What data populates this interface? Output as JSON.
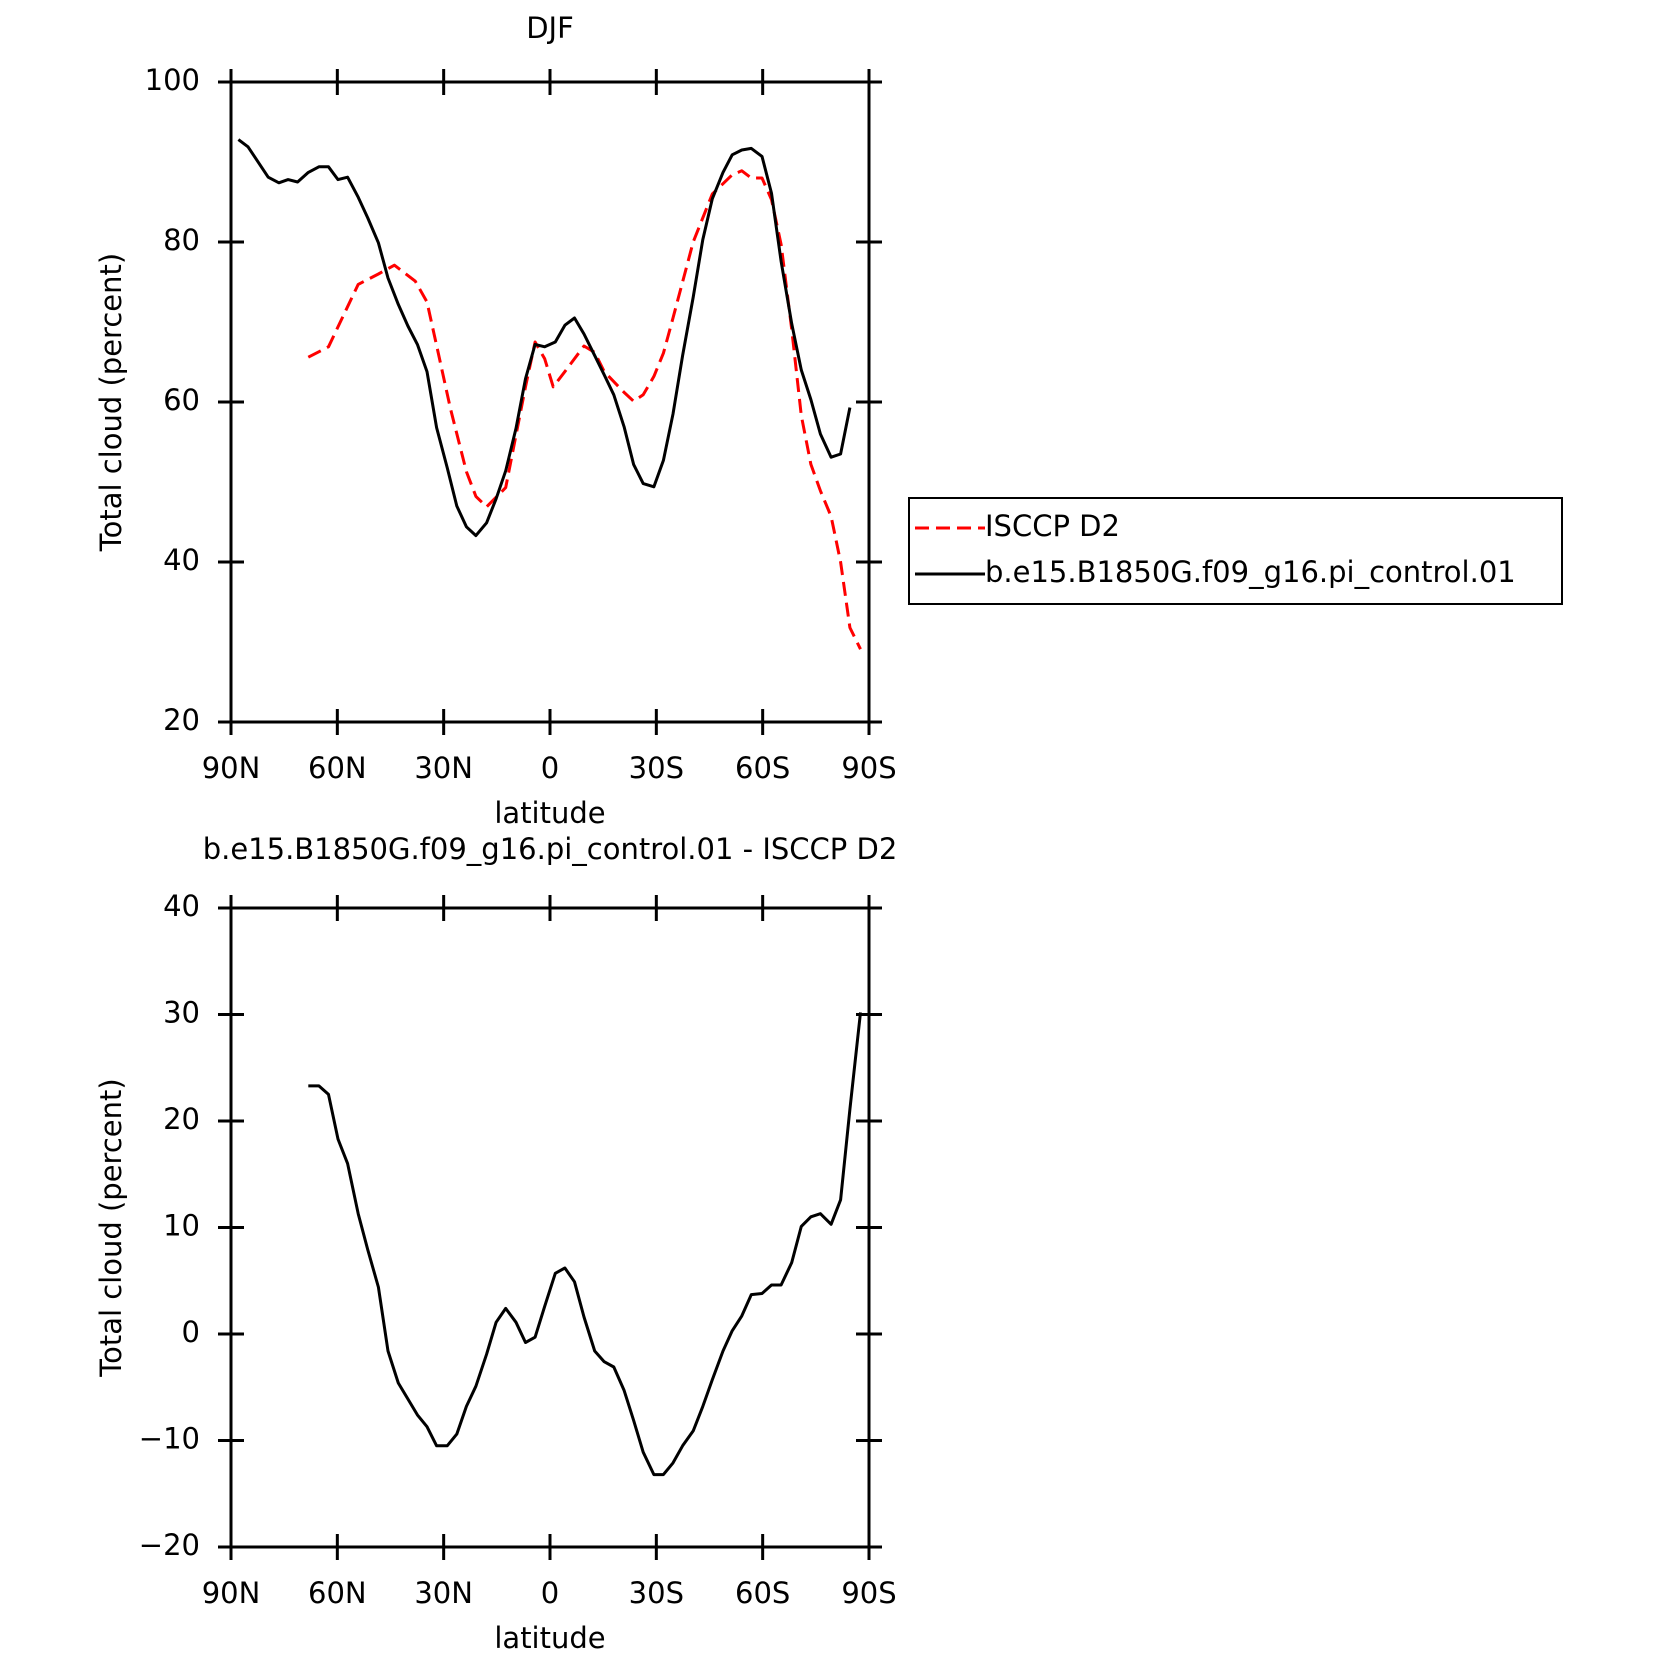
{
  "chart_data": [
    {
      "type": "line",
      "title": "DJF",
      "x_label": "latitude",
      "y_label": "Total cloud (percent)",
      "xlim": [
        90,
        -90
      ],
      "xticks": [
        {
          "value": 90,
          "label": "90N"
        },
        {
          "value": 60,
          "label": "60N"
        },
        {
          "value": 30,
          "label": "30N"
        },
        0,
        {
          "value": -30,
          "label": "30S"
        },
        {
          "value": -60,
          "label": "60S"
        },
        {
          "value": -90,
          "label": "90S"
        }
      ],
      "ylim": [
        20,
        100
      ],
      "yticks": [
        20,
        40,
        60,
        80,
        100
      ],
      "legend": "right",
      "series": [
        {
          "name": "ISCCP D2",
          "color": "#ff0000",
          "dash": true,
          "x": [
            68.2,
            62.5,
            54.1,
            48.4,
            43.9,
            38.0,
            34.7,
            31.7,
            28.1,
            23.6,
            20.9,
            17.9,
            12.5,
            6.9,
            4.2,
            1.5,
            -0.9,
            -4.2,
            -9.6,
            -12.6,
            -15.3,
            -20.9,
            -23.6,
            -26.3,
            -29.3,
            -32.0,
            -34.7,
            -40.4,
            -45.8,
            -51.4,
            -54.1,
            -56.8,
            -59.8,
            -62.5,
            -65.2,
            -68.2,
            -70.9,
            -73.6,
            -76.3,
            -79.3,
            -82.0,
            -84.6,
            -87.6
          ],
          "values": [
            65.6,
            66.9,
            74.7,
            76.0,
            77.1,
            75.1,
            72.5,
            66.5,
            59.2,
            51.3,
            48.2,
            46.9,
            49.3,
            61.9,
            67.5,
            65.4,
            61.9,
            63.8,
            67.0,
            66.2,
            63.8,
            61.2,
            60.1,
            60.9,
            63.2,
            66.1,
            70.5,
            80.0,
            86.0,
            88.4,
            88.9,
            88.0,
            88.0,
            85.3,
            79.7,
            69.1,
            58.3,
            52.2,
            48.9,
            45.7,
            40.0,
            31.8,
            29.1
          ]
        },
        {
          "name": "b.e15.B1850G.f09_g16.pi_control.01",
          "color": "#000000",
          "dash": false,
          "x": [
            87.9,
            85.2,
            79.5,
            76.5,
            73.9,
            71.2,
            68.2,
            65.2,
            62.5,
            59.8,
            57.1,
            54.1,
            51.4,
            48.4,
            45.7,
            42.8,
            40.1,
            37.4,
            34.7,
            32.0,
            29.0,
            26.3,
            23.6,
            20.9,
            17.9,
            15.2,
            12.5,
            9.6,
            6.9,
            4.2,
            1.5,
            -1.5,
            -4.2,
            -6.9,
            -9.6,
            -12.6,
            -15.3,
            -18.0,
            -20.9,
            -23.6,
            -26.3,
            -29.3,
            -32.0,
            -34.7,
            -37.4,
            -40.4,
            -43.1,
            -45.8,
            -48.8,
            -51.4,
            -54.1,
            -56.8,
            -59.8,
            -62.5,
            -65.2,
            -68.2,
            -70.9,
            -73.6,
            -76.3,
            -79.3,
            -82.0,
            -84.6
          ],
          "values": [
            92.8,
            91.9,
            88.1,
            87.4,
            87.8,
            87.5,
            88.7,
            89.4,
            89.4,
            87.8,
            88.1,
            85.6,
            83.0,
            79.9,
            75.5,
            72.2,
            69.5,
            67.2,
            63.8,
            56.8,
            51.8,
            47.0,
            44.4,
            43.3,
            44.9,
            47.9,
            51.4,
            56.7,
            62.9,
            67.2,
            66.9,
            67.5,
            69.6,
            70.5,
            68.5,
            65.8,
            63.4,
            60.9,
            56.9,
            52.2,
            49.8,
            49.4,
            52.7,
            58.5,
            65.8,
            73.1,
            80.3,
            85.4,
            88.7,
            90.9,
            91.5,
            91.7,
            90.7,
            86.1,
            77.6,
            69.8,
            64.0,
            60.3,
            56.0,
            53.1,
            53.5,
            59.3
          ]
        }
      ]
    },
    {
      "type": "line",
      "title": "b.e15.B1850G.f09_g16.pi_control.01 - ISCCP D2",
      "x_label": "latitude",
      "y_label": "Total cloud (percent)",
      "xlim": [
        90,
        -90
      ],
      "xticks": [
        {
          "value": 90,
          "label": "90N"
        },
        {
          "value": 60,
          "label": "60N"
        },
        {
          "value": 30,
          "label": "30N"
        },
        0,
        {
          "value": -30,
          "label": "30S"
        },
        {
          "value": -60,
          "label": "60S"
        },
        {
          "value": -90,
          "label": "90S"
        }
      ],
      "ylim": [
        -20,
        40
      ],
      "yticks": [
        {
          "value": -20,
          "label": "−20"
        },
        {
          "value": -10,
          "label": "−10"
        },
        0,
        10,
        20,
        30,
        40
      ],
      "series": [
        {
          "color": "#000000",
          "dash": false,
          "x": [
            68.2,
            65.2,
            62.5,
            59.8,
            57.1,
            54.1,
            51.4,
            48.4,
            45.7,
            42.8,
            40.1,
            37.4,
            34.7,
            32.0,
            29.0,
            26.3,
            23.6,
            20.9,
            17.9,
            15.2,
            12.5,
            9.6,
            6.9,
            4.2,
            1.5,
            -1.5,
            -4.2,
            -6.9,
            -9.6,
            -12.6,
            -15.3,
            -18.0,
            -20.9,
            -23.6,
            -26.3,
            -29.3,
            -32.0,
            -34.7,
            -37.4,
            -40.4,
            -43.1,
            -45.8,
            -48.8,
            -51.4,
            -54.1,
            -56.8,
            -59.8,
            -62.5,
            -65.2,
            -68.2,
            -70.9,
            -73.6,
            -76.3,
            -79.3,
            -82.0,
            -84.6,
            -87.6
          ],
          "values": [
            23.3,
            23.3,
            22.5,
            18.3,
            16.0,
            11.3,
            7.9,
            4.4,
            -1.6,
            -4.6,
            -6.1,
            -7.6,
            -8.7,
            -10.5,
            -10.5,
            -9.4,
            -6.8,
            -4.9,
            -1.9,
            1.1,
            2.4,
            1.1,
            -0.8,
            -0.3,
            2.6,
            5.7,
            6.2,
            4.9,
            1.6,
            -1.6,
            -2.6,
            -3.1,
            -5.3,
            -8.1,
            -11.1,
            -13.2,
            -13.2,
            -12.1,
            -10.5,
            -9.1,
            -6.8,
            -4.3,
            -1.6,
            0.3,
            1.7,
            3.7,
            3.8,
            4.6,
            4.6,
            6.7,
            10.1,
            11.0,
            11.3,
            10.3,
            12.6,
            21.1,
            30.2
          ]
        }
      ]
    }
  ]
}
